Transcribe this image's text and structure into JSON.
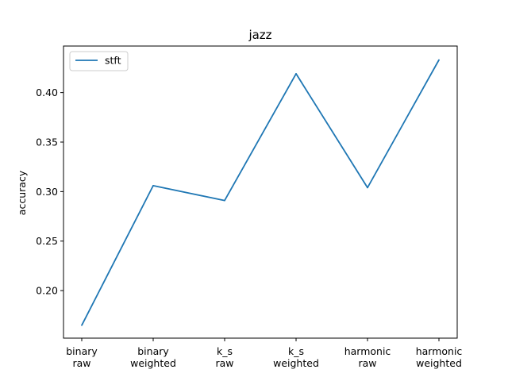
{
  "chart_data": {
    "type": "line",
    "title": "jazz",
    "xlabel": "",
    "ylabel": "accuracy",
    "categories": [
      [
        "binary",
        "raw"
      ],
      [
        "binary",
        "weighted"
      ],
      [
        "k_s",
        "raw"
      ],
      [
        "k_s",
        "weighted"
      ],
      [
        "harmonic",
        "raw"
      ],
      [
        "harmonic",
        "weighted"
      ]
    ],
    "series": [
      {
        "name": "stft",
        "values": [
          0.165,
          0.306,
          0.291,
          0.419,
          0.304,
          0.433
        ],
        "color": "#1f77b4"
      }
    ],
    "yticks": [
      "0.20",
      "0.25",
      "0.30",
      "0.35",
      "0.40"
    ],
    "ylim": [
      0.152,
      0.447
    ],
    "grid": false,
    "legend_position": "upper-left"
  }
}
